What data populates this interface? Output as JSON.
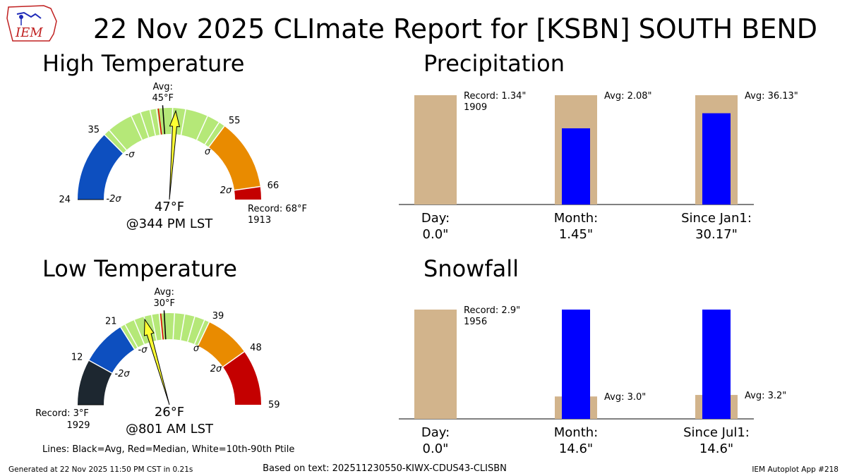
{
  "title": "22 Nov 2025 CLImate Report for [KSBN] SOUTH BEND",
  "logo_text": "IEM",
  "footer": {
    "generated": "Generated at 22 Nov 2025 11:50 PM CST in 0.21s",
    "source": "Based on text: 202511230550-KIWX-CDUS43-CLISBN",
    "app": "IEM Autoplot App #218",
    "lines_legend": "Lines: Black=Avg, Red=Median, White=10th-90th Ptile"
  },
  "colors": {
    "band_2sigma_low": "#0d4fbf",
    "band_sigma": "#b5e878",
    "band_2sigma_high": "#e98b00",
    "band_record_high": "#c40000",
    "band_record_low": "#1d2730",
    "needle": "#ffff33",
    "bar_avg": "#d2b48c",
    "bar_obs": "#0000ff"
  },
  "chart_data": [
    {
      "type": "gauge",
      "title": "High Temperature",
      "range": [
        24,
        66
      ],
      "extent": [
        24,
        68
      ],
      "bands": [
        {
          "from": 24,
          "to": 35,
          "color": "band_2sigma_low"
        },
        {
          "from": 35,
          "to": 55,
          "color": "band_sigma"
        },
        {
          "from": 55,
          "to": 66,
          "color": "band_2sigma_high"
        },
        {
          "from": 66,
          "to": 68,
          "color": "band_record_high"
        }
      ],
      "tick_labels": [
        "24",
        "35",
        "55",
        "66"
      ],
      "sigma_labels": [
        "-2σ",
        "-σ",
        "σ",
        "2σ"
      ],
      "avg_value": 45,
      "avg_label": "Avg:",
      "avg_value_label": "45°F",
      "median_value": 44.3,
      "pct_lines": [
        36,
        40,
        41.5,
        43,
        44,
        46.5,
        48.5,
        52,
        54
      ],
      "observed": 47,
      "observed_label": "47°F",
      "time_label": "@344 PM LST",
      "record_label": "Record: 68°F",
      "record_year": "1913"
    },
    {
      "type": "gauge",
      "title": "Low Temperature",
      "range": [
        12,
        59
      ],
      "extent": [
        3,
        59
      ],
      "bands": [
        {
          "from": 3,
          "to": 12,
          "color": "band_record_low"
        },
        {
          "from": 12,
          "to": 21,
          "color": "band_2sigma_low"
        },
        {
          "from": 21,
          "to": 39,
          "color": "band_sigma"
        },
        {
          "from": 39,
          "to": 48,
          "color": "band_2sigma_high"
        },
        {
          "from": 48,
          "to": 59,
          "color": "band_record_high"
        }
      ],
      "tick_labels": [
        "12",
        "21",
        "39",
        "48",
        "59"
      ],
      "sigma_labels": [
        "-2σ",
        "-σ",
        "σ",
        "2σ"
      ],
      "avg_value": 30,
      "avg_label": "Avg:",
      "avg_value_label": "30°F",
      "median_value": 29.3,
      "pct_lines": [
        22,
        24,
        26,
        27.5,
        29,
        32,
        34,
        36,
        38
      ],
      "observed": 26,
      "observed_label": "26°F",
      "time_label": "@801 AM LST",
      "record_label": "Record: 3°F",
      "record_year": "1929"
    },
    {
      "type": "bar",
      "title": "Precipitation",
      "categories": [
        "Day:",
        "Month:",
        "Since Jan1:"
      ],
      "observed_labels": [
        "0.0\"",
        "1.45\"",
        "30.17\""
      ],
      "observed": [
        0.0,
        1.45,
        30.17
      ],
      "average": [
        0.1,
        2.08,
        36.13
      ],
      "record": 1.34,
      "fraction_of_max": [
        1.0,
        1.0,
        1.0
      ],
      "obs_fraction": [
        0,
        0.697,
        0.835
      ],
      "annotations": [
        "Record: 1.34\"",
        "Avg: 2.08\"",
        "Avg: 36.13\""
      ],
      "record_year": "1909"
    },
    {
      "type": "bar",
      "title": "Snowfall",
      "categories": [
        "Day:",
        "Month:",
        "Since Jul1:"
      ],
      "observed_labels": [
        "0.0\"",
        "14.6\"",
        "14.6\""
      ],
      "observed": [
        0.0,
        14.6,
        14.6
      ],
      "average": [
        0.0,
        3.0,
        3.2
      ],
      "record": 2.9,
      "fraction_of_max": [
        1.0,
        0.205,
        0.219
      ],
      "obs_fraction": [
        0,
        1.0,
        1.0
      ],
      "annotations": [
        "Record: 2.9\"",
        "Avg: 3.0\"",
        "Avg: 3.2\""
      ],
      "record_year": "1956"
    }
  ]
}
